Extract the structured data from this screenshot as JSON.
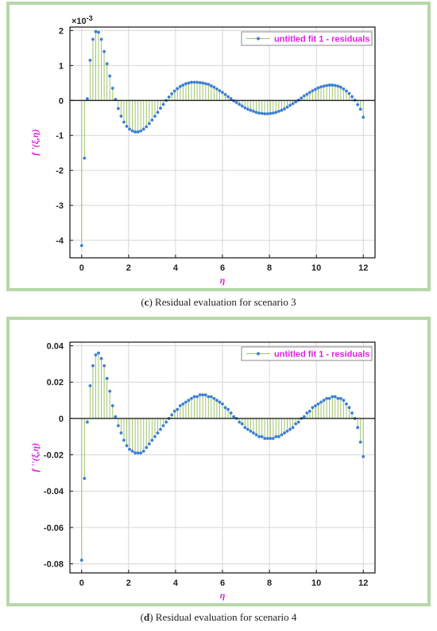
{
  "chart_data": [
    {
      "type": "stem",
      "caption_letter": "c",
      "caption_text": " Residual evaluation for scenario 3",
      "legend": "untitled fit 1 - residuals",
      "xlabel": "η",
      "ylabel": "f '(ξ,η)",
      "exponent_label": "×10",
      "exponent_power": "-3",
      "xlim": [
        -0.5,
        12.5
      ],
      "ylim": [
        -4.5,
        2.1
      ],
      "xticks": [
        0,
        2,
        4,
        6,
        8,
        10,
        12
      ],
      "yticks": [
        2,
        1,
        0,
        -1,
        -2,
        -3,
        -4
      ],
      "stem_color": "#9cc46a",
      "marker_color": "#3a7fd5",
      "x": [
        0,
        0.12,
        0.24,
        0.36,
        0.48,
        0.6,
        0.72,
        0.84,
        0.96,
        1.08,
        1.2,
        1.32,
        1.44,
        1.56,
        1.68,
        1.8,
        1.92,
        2.04,
        2.16,
        2.28,
        2.4,
        2.52,
        2.64,
        2.76,
        2.88,
        3.0,
        3.12,
        3.24,
        3.36,
        3.48,
        3.6,
        3.72,
        3.84,
        3.96,
        4.08,
        4.2,
        4.32,
        4.44,
        4.56,
        4.68,
        4.8,
        4.92,
        5.04,
        5.16,
        5.28,
        5.4,
        5.52,
        5.64,
        5.76,
        5.88,
        6.0,
        6.12,
        6.24,
        6.36,
        6.48,
        6.6,
        6.72,
        6.84,
        6.96,
        7.08,
        7.2,
        7.32,
        7.44,
        7.56,
        7.68,
        7.8,
        7.92,
        8.04,
        8.16,
        8.28,
        8.4,
        8.52,
        8.64,
        8.76,
        8.88,
        9.0,
        9.12,
        9.24,
        9.36,
        9.48,
        9.6,
        9.72,
        9.84,
        9.96,
        10.08,
        10.2,
        10.32,
        10.44,
        10.56,
        10.68,
        10.8,
        10.92,
        11.04,
        11.16,
        11.28,
        11.4,
        11.52,
        11.64,
        11.76,
        11.88,
        12.0
      ],
      "y": [
        -4.15,
        -1.65,
        0.05,
        1.15,
        1.75,
        1.97,
        1.95,
        1.75,
        1.4,
        1.05,
        0.7,
        0.35,
        0.03,
        -0.23,
        -0.45,
        -0.62,
        -0.74,
        -0.82,
        -0.87,
        -0.9,
        -0.9,
        -0.87,
        -0.82,
        -0.75,
        -0.66,
        -0.56,
        -0.45,
        -0.34,
        -0.22,
        -0.11,
        0.0,
        0.1,
        0.19,
        0.27,
        0.34,
        0.4,
        0.44,
        0.48,
        0.5,
        0.52,
        0.52,
        0.52,
        0.51,
        0.5,
        0.48,
        0.46,
        0.42,
        0.38,
        0.33,
        0.28,
        0.23,
        0.17,
        0.11,
        0.05,
        -0.01,
        -0.06,
        -0.11,
        -0.16,
        -0.21,
        -0.25,
        -0.28,
        -0.31,
        -0.34,
        -0.36,
        -0.37,
        -0.38,
        -0.38,
        -0.37,
        -0.36,
        -0.34,
        -0.31,
        -0.28,
        -0.24,
        -0.19,
        -0.14,
        -0.09,
        -0.04,
        0.01,
        0.07,
        0.13,
        0.18,
        0.23,
        0.28,
        0.32,
        0.36,
        0.39,
        0.41,
        0.43,
        0.44,
        0.44,
        0.43,
        0.41,
        0.38,
        0.33,
        0.27,
        0.2,
        0.11,
        0.01,
        -0.12,
        -0.25,
        -0.48
      ]
    },
    {
      "type": "stem",
      "caption_letter": "d",
      "caption_text": " Residual evaluation for scenario 4",
      "legend": "untitled fit 1 - residuals",
      "xlabel": "η",
      "ylabel": "f ''(ξ,η)",
      "xlim": [
        -0.5,
        12.5
      ],
      "ylim": [
        -0.085,
        0.042
      ],
      "xticks": [
        0,
        2,
        4,
        6,
        8,
        10,
        12
      ],
      "yticks": [
        0.04,
        0.02,
        0,
        -0.02,
        -0.04,
        -0.06,
        -0.08
      ],
      "ytick_labels": [
        "0.04",
        "0.02",
        "0",
        "-0.02",
        "-0.04",
        "-0.06",
        "-0.08"
      ],
      "stem_color": "#9cc46a",
      "marker_color": "#3a7fd5",
      "x": [
        0,
        0.12,
        0.24,
        0.36,
        0.48,
        0.6,
        0.72,
        0.84,
        0.96,
        1.08,
        1.2,
        1.32,
        1.44,
        1.56,
        1.68,
        1.8,
        1.92,
        2.04,
        2.16,
        2.28,
        2.4,
        2.52,
        2.64,
        2.76,
        2.88,
        3.0,
        3.12,
        3.24,
        3.36,
        3.48,
        3.6,
        3.72,
        3.84,
        3.96,
        4.08,
        4.2,
        4.32,
        4.44,
        4.56,
        4.68,
        4.8,
        4.92,
        5.04,
        5.16,
        5.28,
        5.4,
        5.52,
        5.64,
        5.76,
        5.88,
        6.0,
        6.12,
        6.24,
        6.36,
        6.48,
        6.6,
        6.72,
        6.84,
        6.96,
        7.08,
        7.2,
        7.32,
        7.44,
        7.56,
        7.68,
        7.8,
        7.92,
        8.04,
        8.16,
        8.28,
        8.4,
        8.52,
        8.64,
        8.76,
        8.88,
        9.0,
        9.12,
        9.24,
        9.36,
        9.48,
        9.6,
        9.72,
        9.84,
        9.96,
        10.08,
        10.2,
        10.32,
        10.44,
        10.56,
        10.68,
        10.8,
        10.92,
        11.04,
        11.16,
        11.28,
        11.4,
        11.52,
        11.64,
        11.76,
        11.88,
        12.0
      ],
      "y": [
        -0.078,
        -0.033,
        -0.002,
        0.018,
        0.029,
        0.035,
        0.036,
        0.033,
        0.029,
        0.022,
        0.015,
        0.007,
        0.001,
        -0.004,
        -0.008,
        -0.012,
        -0.015,
        -0.017,
        -0.018,
        -0.019,
        -0.019,
        -0.019,
        -0.018,
        -0.016,
        -0.014,
        -0.012,
        -0.01,
        -0.008,
        -0.006,
        -0.004,
        -0.002,
        0.0,
        0.002,
        0.004,
        0.005,
        0.007,
        0.008,
        0.009,
        0.01,
        0.011,
        0.012,
        0.012,
        0.013,
        0.013,
        0.013,
        0.012,
        0.012,
        0.011,
        0.01,
        0.009,
        0.008,
        0.006,
        0.005,
        0.003,
        0.001,
        0.0,
        -0.002,
        -0.003,
        -0.005,
        -0.006,
        -0.007,
        -0.008,
        -0.009,
        -0.01,
        -0.01,
        -0.011,
        -0.011,
        -0.011,
        -0.011,
        -0.01,
        -0.01,
        -0.009,
        -0.008,
        -0.007,
        -0.006,
        -0.005,
        -0.003,
        -0.002,
        0.0,
        0.001,
        0.003,
        0.004,
        0.006,
        0.007,
        0.008,
        0.009,
        0.01,
        0.011,
        0.011,
        0.012,
        0.012,
        0.011,
        0.011,
        0.01,
        0.008,
        0.006,
        0.003,
        0.0,
        -0.005,
        -0.013,
        -0.021
      ]
    }
  ]
}
